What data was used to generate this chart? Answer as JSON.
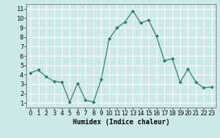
{
  "x": [
    0,
    1,
    2,
    3,
    4,
    5,
    6,
    7,
    8,
    9,
    10,
    11,
    12,
    13,
    14,
    15,
    16,
    17,
    18,
    19,
    20,
    21,
    22,
    23
  ],
  "y": [
    4.2,
    4.5,
    3.8,
    3.3,
    3.2,
    1.1,
    3.1,
    1.3,
    1.1,
    3.5,
    7.8,
    9.0,
    9.6,
    10.8,
    9.5,
    9.8,
    8.1,
    5.5,
    5.7,
    3.2,
    4.6,
    3.2,
    2.6,
    2.7
  ],
  "line_color": "#2d7a6e",
  "marker": "D",
  "marker_size": 2.2,
  "bg_color": "#cce8e8",
  "grid_color": "#b0d8d8",
  "xlabel": "Humidex (Indice chaleur)",
  "xlabel_fontsize": 7,
  "tick_fontsize": 6,
  "ylim": [
    0.5,
    11.5
  ],
  "xlim": [
    -0.5,
    23.5
  ],
  "yticks": [
    1,
    2,
    3,
    4,
    5,
    6,
    7,
    8,
    9,
    10,
    11
  ],
  "xticks": [
    0,
    1,
    2,
    3,
    4,
    5,
    6,
    7,
    8,
    9,
    10,
    11,
    12,
    13,
    14,
    15,
    16,
    17,
    18,
    19,
    20,
    21,
    22,
    23
  ]
}
